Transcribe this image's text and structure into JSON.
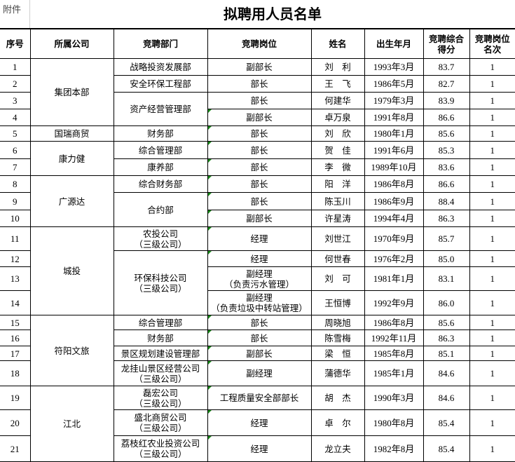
{
  "attachment_label": "附件",
  "title": "拟聘用人员名单",
  "columns": [
    "序号",
    "所属公司",
    "竞聘部门",
    "竞聘岗位",
    "姓名",
    "出生年月",
    "竞聘综合得分",
    "竞聘岗位名次"
  ],
  "rows": [
    {
      "seq": "1",
      "company": "集团本部",
      "company_span": 4,
      "dept": "战略投资发展部",
      "dept_span": 1,
      "position": "副部长",
      "name": "刘　利",
      "birth": "1993年3月",
      "score": "83.7",
      "rank": "1",
      "marker": false
    },
    {
      "seq": "2",
      "dept": "安全环保工程部",
      "dept_span": 1,
      "position": "部长",
      "name": "王　飞",
      "birth": "1986年5月",
      "score": "82.7",
      "rank": "1",
      "marker": false
    },
    {
      "seq": "3",
      "dept": "资产经营管理部",
      "dept_span": 2,
      "position": "部长",
      "name": "何建华",
      "birth": "1979年3月",
      "score": "83.9",
      "rank": "1",
      "marker": false
    },
    {
      "seq": "4",
      "position": "副部长",
      "name": "卓万泉",
      "birth": "1991年8月",
      "score": "86.6",
      "rank": "1",
      "marker": true
    },
    {
      "seq": "5",
      "company": "国瑞商贸",
      "company_span": 1,
      "dept": "财务部",
      "dept_span": 1,
      "position": "部长",
      "name": "刘　欣",
      "birth": "1980年1月",
      "score": "85.6",
      "rank": "1",
      "marker": true
    },
    {
      "seq": "6",
      "company": "康力健",
      "company_span": 2,
      "dept": "综合管理部",
      "dept_span": 1,
      "position": "部长",
      "name": "贺　佳",
      "birth": "1991年6月",
      "score": "85.3",
      "rank": "1",
      "marker": true
    },
    {
      "seq": "7",
      "dept": "康养部",
      "dept_span": 1,
      "position": "部长",
      "name": "李　微",
      "birth": "1989年10月",
      "score": "83.6",
      "rank": "1",
      "marker": true
    },
    {
      "seq": "8",
      "company": "广源达",
      "company_span": 3,
      "dept": "综合财务部",
      "dept_span": 1,
      "position": "部长",
      "name": "阳　洋",
      "birth": "1986年8月",
      "score": "86.6",
      "rank": "1",
      "marker": true
    },
    {
      "seq": "9",
      "dept": "合约部",
      "dept_span": 2,
      "position": "部长",
      "name": "陈玉川",
      "birth": "1986年9月",
      "score": "88.4",
      "rank": "1",
      "marker": true
    },
    {
      "seq": "10",
      "position": "副部长",
      "name": "许星涛",
      "birth": "1994年4月",
      "score": "86.3",
      "rank": "1",
      "marker": true
    },
    {
      "seq": "11",
      "company": "城投",
      "company_span": 4,
      "dept": "农投公司\n（三级公司）",
      "dept_span": 1,
      "position": "经理",
      "name": "刘世江",
      "birth": "1970年9月",
      "score": "85.7",
      "rank": "1",
      "marker": true
    },
    {
      "seq": "12",
      "dept": "环保科技公司\n（三级公司）",
      "dept_span": 3,
      "position": "经理",
      "name": "何世春",
      "birth": "1976年2月",
      "score": "85.0",
      "rank": "1",
      "marker": true
    },
    {
      "seq": "13",
      "position": "副经理\n（负责污水管理）",
      "name": "刘　可",
      "birth": "1981年1月",
      "score": "83.1",
      "rank": "1",
      "marker": false
    },
    {
      "seq": "14",
      "position": "副经理\n（负责垃圾中转站管理）",
      "name": "王恒博",
      "birth": "1992年9月",
      "score": "86.0",
      "rank": "1",
      "marker": false
    },
    {
      "seq": "15",
      "company": "符阳文旅",
      "company_span": 4,
      "dept": "综合管理部",
      "dept_span": 1,
      "position": "部长",
      "name": "周晓旭",
      "birth": "1986年8月",
      "score": "85.6",
      "rank": "1",
      "marker": true
    },
    {
      "seq": "16",
      "dept": "财务部",
      "dept_span": 1,
      "position": "部长",
      "name": "陈雪梅",
      "birth": "1992年11月",
      "score": "86.3",
      "rank": "1",
      "marker": true
    },
    {
      "seq": "17",
      "dept": "景区规划建设管理部",
      "dept_span": 1,
      "position": "副部长",
      "name": "梁　恒",
      "birth": "1985年8月",
      "score": "85.1",
      "rank": "1",
      "marker": true
    },
    {
      "seq": "18",
      "dept": "龙挂山景区经营公司\n（三级公司）",
      "dept_span": 1,
      "position": "副经理",
      "name": "蒲德华",
      "birth": "1985年1月",
      "score": "84.6",
      "rank": "1",
      "marker": true
    },
    {
      "seq": "19",
      "company": "江北",
      "company_span": 3,
      "dept": "磊宏公司\n（三级公司）",
      "dept_span": 1,
      "position": "工程质量安全部部长",
      "name": "胡　杰",
      "birth": "1990年3月",
      "score": "84.6",
      "rank": "1",
      "marker": true
    },
    {
      "seq": "20",
      "dept": "盛北商贸公司\n（三级公司）",
      "dept_span": 1,
      "position": "经理",
      "name": "卓　尔",
      "birth": "1980年8月",
      "score": "85.4",
      "rank": "1",
      "marker": true
    },
    {
      "seq": "21",
      "dept": "荔枝红农业投资公司\n（三级公司）",
      "dept_span": 1,
      "position": "经理",
      "name": "龙立夫",
      "birth": "1982年8月",
      "score": "85.4",
      "rank": "1",
      "marker": true
    }
  ]
}
